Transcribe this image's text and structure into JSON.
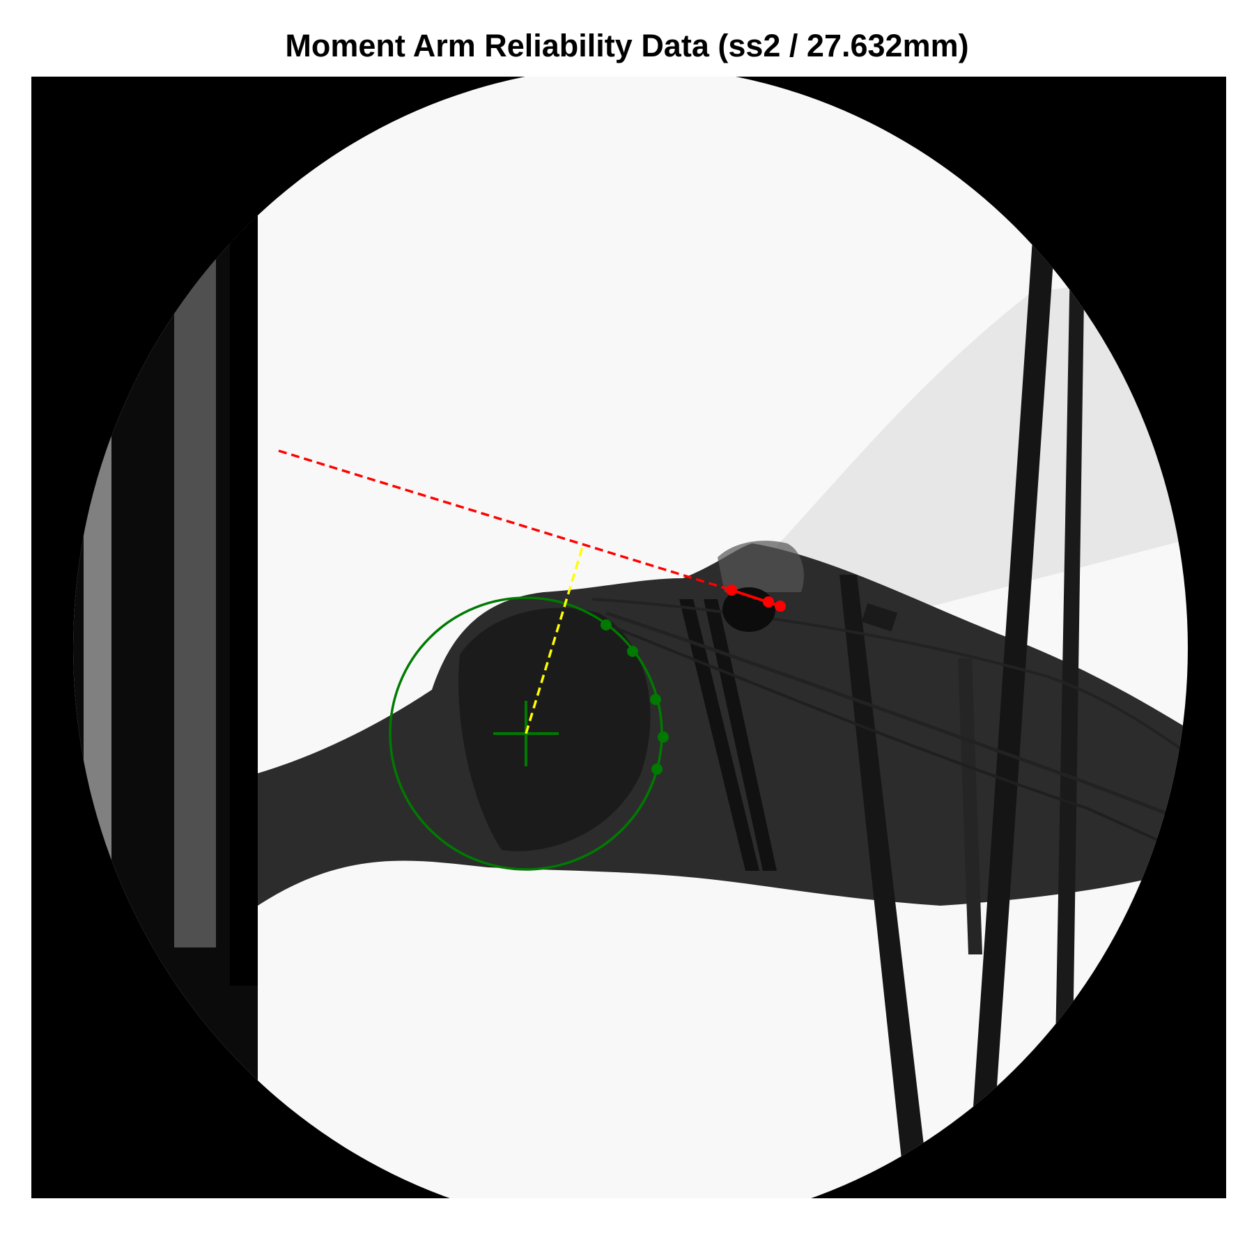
{
  "title": "Moment Arm Reliability Data (ss2 / 27.632mm)",
  "colors": {
    "background": "#ffffff",
    "frame": "#000000",
    "field_of_view": "#f8f8f8",
    "tissue": "#2a2a2a",
    "hardware": "#141414",
    "fit_circle": "#007a00",
    "tendon_line": "#ff0000",
    "moment_arm": "#ffff00"
  },
  "annotations": {
    "fit_circle_points": 5,
    "tendon_points": 3,
    "moment_arm_style": "dashed",
    "tendon_extension_style": "dashed",
    "center_marker": "cross"
  }
}
